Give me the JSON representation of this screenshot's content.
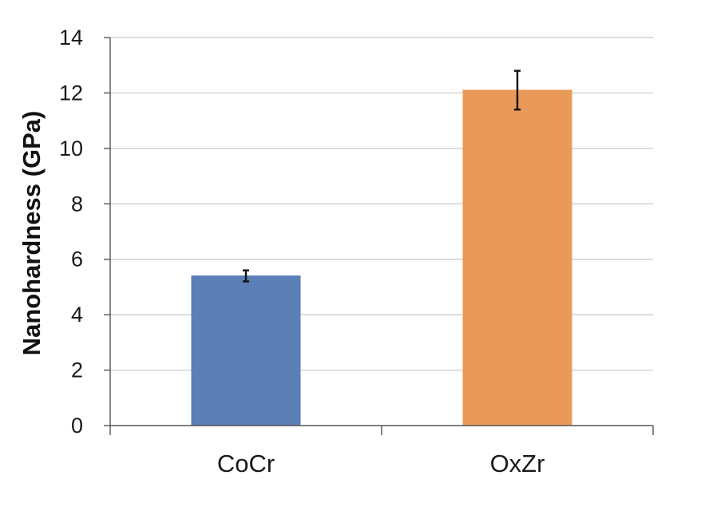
{
  "chart_data": {
    "type": "bar",
    "title": "",
    "xlabel": "",
    "ylabel": "Nanohardness (GPa)",
    "ylim": [
      0,
      14
    ],
    "yticks": [
      0,
      2,
      4,
      6,
      8,
      10,
      12,
      14
    ],
    "grid": true,
    "legend": "none",
    "categories": [
      "CoCr",
      "OxZr"
    ],
    "values": [
      5.4,
      12.1
    ],
    "errors": [
      0.2,
      0.7
    ],
    "colors": [
      "#5b7fb6",
      "#e99a58"
    ]
  }
}
